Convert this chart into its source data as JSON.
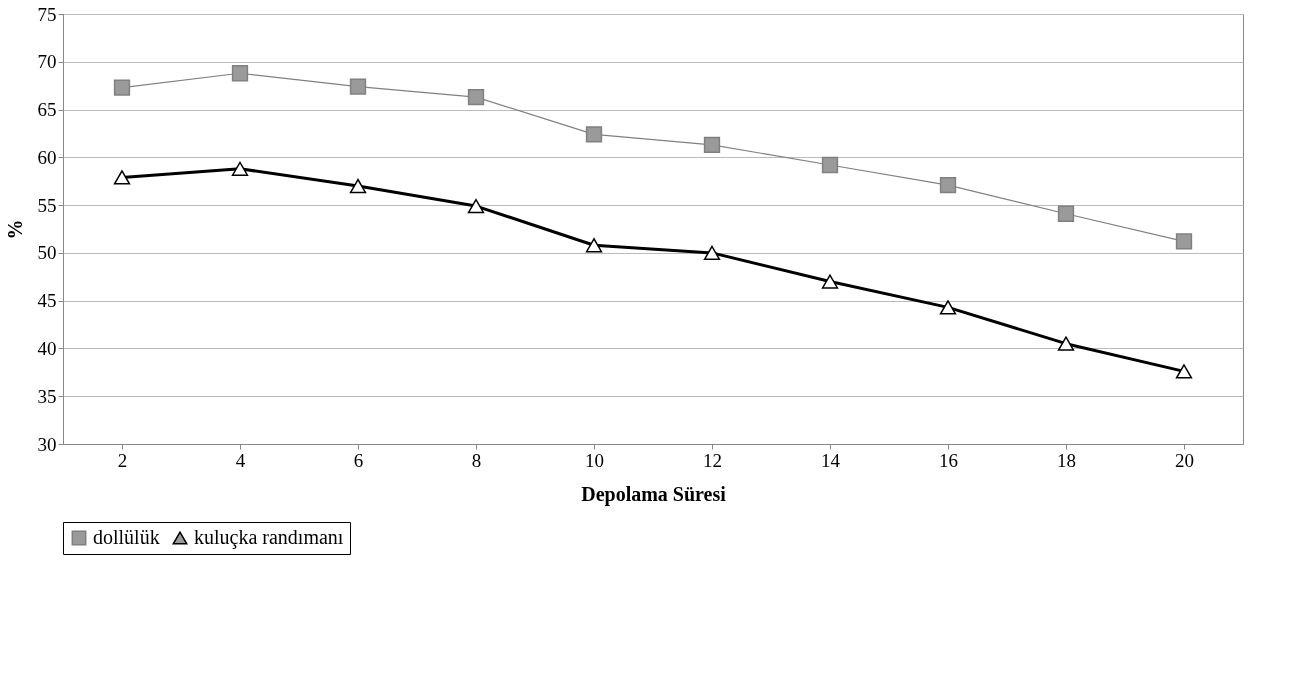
{
  "chart_data": {
    "type": "line",
    "xlabel": "Depolama Süresi",
    "ylabel": "%",
    "categories": [
      "2",
      "4",
      "6",
      "8",
      "10",
      "12",
      "14",
      "16",
      "18",
      "20"
    ],
    "series": [
      {
        "name": "dollülük",
        "color": "#808080",
        "marker": "square",
        "values": [
          67.3,
          68.8,
          67.4,
          66.3,
          62.4,
          61.3,
          59.2,
          57.1,
          54.1,
          51.2
        ]
      },
      {
        "name": "kuluçka randımanı",
        "color": "#000000",
        "marker": "triangle",
        "values": [
          57.9,
          58.8,
          57.0,
          54.9,
          50.8,
          50.0,
          47.0,
          44.3,
          40.5,
          37.6
        ]
      }
    ],
    "ylim": [
      30,
      75
    ],
    "yticks": [
      30,
      35,
      40,
      45,
      50,
      55,
      60,
      65,
      70,
      75
    ],
    "grid": "y",
    "legend": "bottom",
    "line_style": "solid"
  }
}
